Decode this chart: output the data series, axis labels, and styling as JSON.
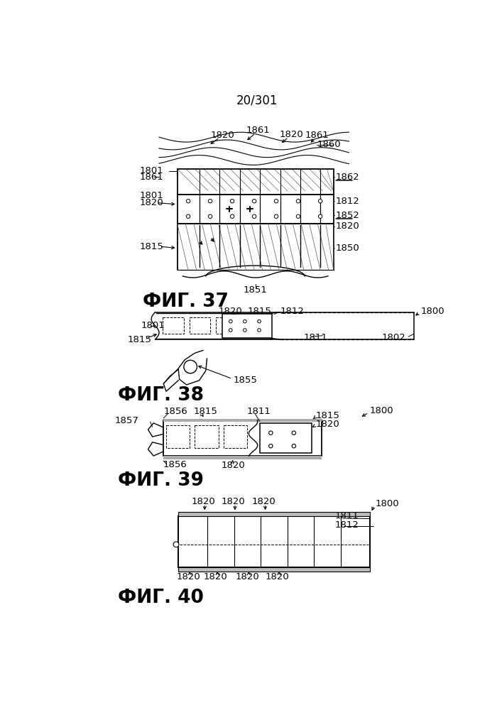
{
  "page_num": "20/301",
  "fig37_label": "ФИГ. 37",
  "fig38_label": "ФИГ. 38",
  "fig39_label": "ФИГ. 39",
  "fig40_label": "ФИГ. 40",
  "bg": "#ffffff",
  "lc": "#000000",
  "lfs": 9.5,
  "ffs": 19,
  "pfs": 12
}
